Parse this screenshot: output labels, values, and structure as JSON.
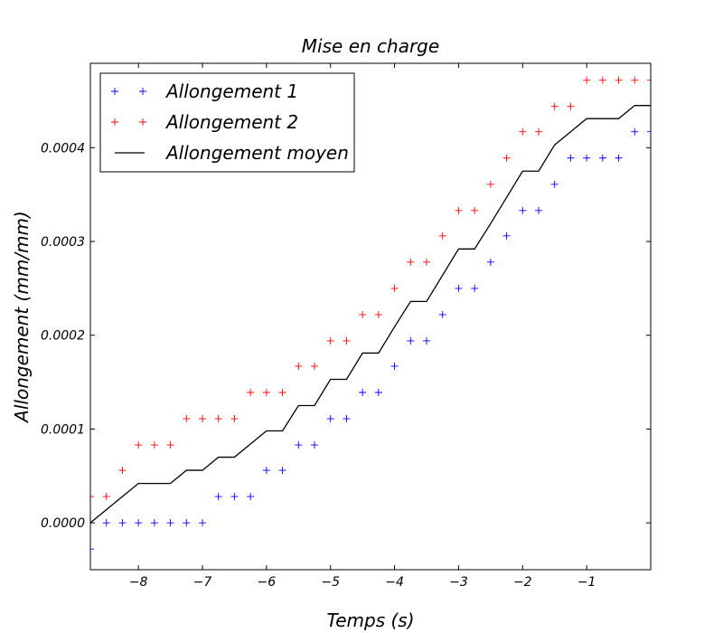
{
  "chart_data": {
    "type": "line",
    "title": "Mise en charge",
    "xlabel": "Temps (s)",
    "ylabel": "Allongement (mm/mm)",
    "xlim": [
      -8.75,
      0
    ],
    "ylim": [
      -5e-05,
      0.00049
    ],
    "grid": false,
    "legend_position": "top-left",
    "x_ticks": [
      -8,
      -7,
      -6,
      -5,
      -4,
      -3,
      -2,
      -1
    ],
    "x_tick_labels": [
      "−8",
      "−7",
      "−6",
      "−5",
      "−4",
      "−3",
      "−2",
      "−1"
    ],
    "y_ticks": [
      0,
      0.0001,
      0.0002,
      0.0003,
      0.0004
    ],
    "y_tick_labels": [
      "0.0000",
      "0.0001",
      "0.0002",
      "0.0003",
      "0.0004"
    ],
    "x": [
      -8.75,
      -8.5,
      -8.25,
      -8,
      -7.75,
      -7.5,
      -7.25,
      -7,
      -6.75,
      -6.5,
      -6.25,
      -6,
      -5.75,
      -5.5,
      -5.25,
      -5,
      -4.75,
      -4.5,
      -4.25,
      -4,
      -3.75,
      -3.5,
      -3.25,
      -3,
      -2.75,
      -2.5,
      -2.25,
      -2,
      -1.75,
      -1.5,
      -1.25,
      -1,
      -0.75,
      -0.5,
      -0.25,
      0
    ],
    "series": [
      {
        "name": "Allongement 1",
        "style": "marker",
        "marker": "+",
        "color": "#0000ff",
        "values": [
          -2.8e-05,
          0,
          0,
          0,
          0,
          0,
          0,
          0,
          2.8e-05,
          2.8e-05,
          2.8e-05,
          5.6e-05,
          5.6e-05,
          8.3e-05,
          8.3e-05,
          0.000111,
          0.000111,
          0.000139,
          0.000139,
          0.000167,
          0.000194,
          0.000194,
          0.000222,
          0.00025,
          0.00025,
          0.000278,
          0.000306,
          0.000333,
          0.000333,
          0.000361,
          0.000389,
          0.000389,
          0.000389,
          0.000389,
          0.000417,
          0.000417
        ]
      },
      {
        "name": "Allongement 2",
        "style": "marker",
        "marker": "+",
        "color": "#ff0000",
        "values": [
          2.8e-05,
          2.8e-05,
          5.6e-05,
          8.3e-05,
          8.3e-05,
          8.3e-05,
          0.000111,
          0.000111,
          0.000111,
          0.000111,
          0.000139,
          0.000139,
          0.000139,
          0.000167,
          0.000167,
          0.000194,
          0.000194,
          0.000222,
          0.000222,
          0.00025,
          0.000278,
          0.000278,
          0.000306,
          0.000333,
          0.000333,
          0.000361,
          0.000389,
          0.000417,
          0.000417,
          0.000444,
          0.000444,
          0.000472,
          0.000472,
          0.000472,
          0.000472,
          0.000472
        ]
      },
      {
        "name": "Allongement moyen",
        "style": "line",
        "color": "#000000",
        "values": [
          0,
          1.4e-05,
          2.8e-05,
          4.2e-05,
          4.2e-05,
          4.2e-05,
          5.6e-05,
          5.6e-05,
          7e-05,
          7e-05,
          8.4e-05,
          9.8e-05,
          9.8e-05,
          0.000125,
          0.000125,
          0.000153,
          0.000153,
          0.000181,
          0.000181,
          0.000209,
          0.000236,
          0.000236,
          0.000264,
          0.000292,
          0.000292,
          0.000319,
          0.000347,
          0.000375,
          0.000375,
          0.000403,
          0.000417,
          0.000431,
          0.000431,
          0.000431,
          0.000445,
          0.000445
        ]
      }
    ]
  }
}
